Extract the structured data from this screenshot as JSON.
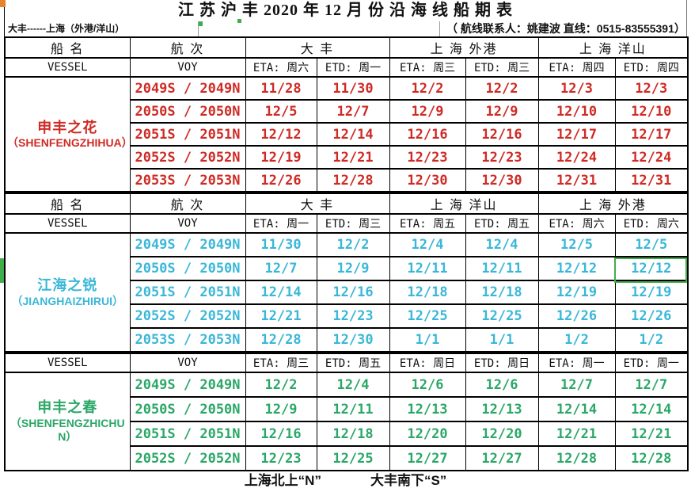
{
  "title": "江 苏 沪 丰 2020 年 12 月 份 沿 海 线 船 期 表",
  "subtitle": {
    "route": "大丰------上海（外港/洋山）",
    "contact": "（ 航线联系人：姚建波 直线：0515-83555391）"
  },
  "labels": {
    "vessel_zh": "船  名",
    "voy_zh": "航  次",
    "vessel_en": "VESSEL",
    "voy_en": "VOY"
  },
  "colors": {
    "section_red": "#cf2b25",
    "section_cyan": "#3ab7d8",
    "section_green": "#2aa767",
    "selection_green": "#3fae49",
    "corner_orange": "#e5862c"
  },
  "sections": [
    {
      "ports": [
        "大  丰",
        "上 海 外港",
        "上 海 洋山"
      ],
      "day_headers": [
        "ETA: 周六",
        "ETD: 周一",
        "ETA: 周三",
        "ETD: 周三",
        "ETA: 周四",
        "ETD: 周四"
      ],
      "vessel": {
        "name_zh": "申丰之花",
        "name_en": "（SHENFENGZHIHUA）"
      },
      "color": "#cf2b25",
      "rows": [
        {
          "voy": "2049S / 2049N",
          "dates": [
            "11/28",
            "11/30",
            "12/2",
            "12/2",
            "12/3",
            "12/3"
          ]
        },
        {
          "voy": "2050S / 2050N",
          "dates": [
            "12/5",
            "12/7",
            "12/9",
            "12/9",
            "12/10",
            "12/10"
          ]
        },
        {
          "voy": "2051S / 2051N",
          "dates": [
            "12/12",
            "12/14",
            "12/16",
            "12/16",
            "12/17",
            "12/17"
          ]
        },
        {
          "voy": "2052S / 2052N",
          "dates": [
            "12/19",
            "12/21",
            "12/23",
            "12/23",
            "12/24",
            "12/24"
          ]
        },
        {
          "voy": "2053S / 2053N",
          "dates": [
            "12/26",
            "12/28",
            "12/30",
            "12/30",
            "12/31",
            "12/31"
          ]
        }
      ]
    },
    {
      "ports": [
        "大  丰",
        "上 海 洋山",
        "上 海 外港"
      ],
      "day_headers": [
        "ETA: 周一",
        "ETD: 周三",
        "ETA: 周五",
        "ETD: 周五",
        "ETA: 周六",
        "ETD: 周六"
      ],
      "vessel": {
        "name_zh": "江海之锐",
        "name_en": "（JIANGHAIZHIRUI）"
      },
      "color": "#3ab7d8",
      "rows": [
        {
          "voy": "2049S / 2049N",
          "dates": [
            "11/30",
            "12/2",
            "12/4",
            "12/4",
            "12/5",
            "12/5"
          ]
        },
        {
          "voy": "2050S / 2050N",
          "dates": [
            "12/7",
            "12/9",
            "12/11",
            "12/11",
            "12/12",
            "12/12"
          ]
        },
        {
          "voy": "2051S / 2051N",
          "dates": [
            "12/14",
            "12/16",
            "12/18",
            "12/18",
            "12/19",
            "12/19"
          ]
        },
        {
          "voy": "2052S / 2052N",
          "dates": [
            "12/21",
            "12/23",
            "12/25",
            "12/25",
            "12/26",
            "12/26"
          ]
        },
        {
          "voy": "2053S / 2053N",
          "dates": [
            "12/28",
            "12/30",
            "1/1",
            "1/1",
            "1/2",
            "1/2"
          ]
        }
      ]
    },
    {
      "ports": null,
      "day_headers": [
        "ETA: 周三",
        "ETD: 周五",
        "ETA: 周日",
        "ETD: 周日",
        "ETA: 周一",
        "ETD: 周一"
      ],
      "vessel": {
        "name_zh": "申丰之春",
        "name_en": "（SHENFENGZHICHUN）"
      },
      "color": "#2aa767",
      "rows": [
        {
          "voy": "2049S / 2049N",
          "dates": [
            "12/2",
            "12/4",
            "12/6",
            "12/6",
            "12/7",
            "12/7"
          ]
        },
        {
          "voy": "2050S / 2050N",
          "dates": [
            "12/9",
            "12/11",
            "12/13",
            "12/13",
            "12/14",
            "12/14"
          ]
        },
        {
          "voy": "2051S / 2051N",
          "dates": [
            "12/16",
            "12/18",
            "12/20",
            "12/20",
            "12/21",
            "12/21"
          ]
        },
        {
          "voy": "2052S / 2052N",
          "dates": [
            "12/23",
            "12/25",
            "12/27",
            "12/27",
            "12/28",
            "12/28"
          ]
        }
      ]
    }
  ],
  "footer": {
    "north_note": "上海北上“N”",
    "south_note": "大丰南下“S”"
  }
}
